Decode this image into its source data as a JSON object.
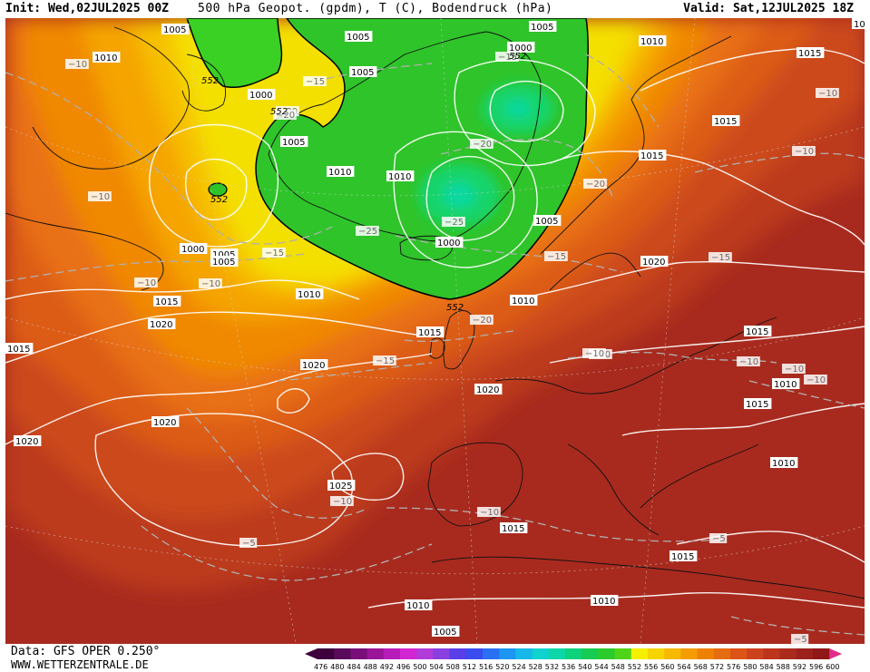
{
  "header": {
    "init": "Init: Wed,02JUL2025 00Z",
    "title": "500 hPa Geopot. (gpdm), T (C), Bodendruck (hPa)",
    "valid": "Valid: Sat,12JUL2025 18Z"
  },
  "footer": {
    "data_source": "Data: GFS OPER 0.250°",
    "website": "WWW.WETTERZENTRALE.DE"
  },
  "legend": {
    "values": [
      "476",
      "480",
      "484",
      "488",
      "492",
      "496",
      "500",
      "504",
      "508",
      "512",
      "516",
      "520",
      "524",
      "528",
      "532",
      "536",
      "540",
      "544",
      "548",
      "552",
      "556",
      "560",
      "564",
      "568",
      "572",
      "576",
      "580",
      "584",
      "588",
      "592",
      "596",
      "600"
    ],
    "colors": [
      "#3d003d",
      "#5a0a5a",
      "#7a0f7a",
      "#9a1498",
      "#b81cb8",
      "#d226d2",
      "#b13bd8",
      "#8a3fe0",
      "#5a3fe8",
      "#3a4cf0",
      "#2a70f2",
      "#1d96f2",
      "#15b8e8",
      "#10d2cf",
      "#0dd6a8",
      "#0dd27c",
      "#16cc52",
      "#2ccb2c",
      "#50d418",
      "#f4f000",
      "#f6d400",
      "#f6b800",
      "#f49c00",
      "#ee8200",
      "#e66c10",
      "#dc5418",
      "#cc421c",
      "#bc341c",
      "#aa2a1c",
      "#9c201c",
      "#901818",
      "#e32d8c"
    ]
  },
  "map": {
    "pressure_labels": [
      {
        "t": "1005"
      },
      {
        "t": "1005"
      },
      {
        "t": "1005"
      },
      {
        "t": "1000"
      },
      {
        "t": "1010"
      },
      {
        "t": "1015"
      },
      {
        "t": "1010"
      },
      {
        "t": "1005"
      },
      {
        "t": "1000"
      },
      {
        "t": "1005"
      },
      {
        "t": "1010"
      },
      {
        "t": "1010"
      },
      {
        "t": "1005"
      },
      {
        "t": "1015"
      },
      {
        "t": "1015"
      },
      {
        "t": "1005"
      },
      {
        "t": "1000"
      },
      {
        "t": "1005"
      },
      {
        "t": "1000"
      },
      {
        "t": "1010"
      },
      {
        "t": "1015"
      },
      {
        "t": "1020"
      },
      {
        "t": "1015"
      },
      {
        "t": "1020"
      },
      {
        "t": "1010"
      },
      {
        "t": "1015"
      },
      {
        "t": "1020"
      },
      {
        "t": "1015"
      },
      {
        "t": "1010"
      },
      {
        "t": "1020"
      },
      {
        "t": "1020"
      },
      {
        "t": "1020"
      },
      {
        "t": "1015"
      },
      {
        "t": "1010"
      },
      {
        "t": "1025"
      },
      {
        "t": "1015"
      },
      {
        "t": "1015"
      },
      {
        "t": "1010"
      },
      {
        "t": "1010"
      },
      {
        "t": "1005"
      },
      {
        "t": "10"
      }
    ],
    "temperature_labels": [
      {
        "t": "−10"
      },
      {
        "t": "−15"
      },
      {
        "t": "−20"
      },
      {
        "t": "−15"
      },
      {
        "t": "−10"
      },
      {
        "t": "−20"
      },
      {
        "t": "−20"
      },
      {
        "t": "−25"
      },
      {
        "t": "−25"
      },
      {
        "t": "−15"
      },
      {
        "t": "−10"
      },
      {
        "t": "−10"
      },
      {
        "t": "−10"
      },
      {
        "t": "−20"
      },
      {
        "t": "−15"
      },
      {
        "t": "−15"
      },
      {
        "t": "−20"
      },
      {
        "t": "−10"
      },
      {
        "t": "−10"
      },
      {
        "t": "−15"
      },
      {
        "t": "−10"
      },
      {
        "t": "−10"
      },
      {
        "t": "−10"
      },
      {
        "t": "−10"
      },
      {
        "t": "−5"
      },
      {
        "t": "−5"
      },
      {
        "t": "−5"
      },
      {
        "t": "−10"
      },
      {
        "t": "−10"
      }
    ],
    "geopotential_labels": [
      {
        "t": "552"
      },
      {
        "t": "552"
      },
      {
        "t": "552"
      },
      {
        "t": "552"
      },
      {
        "t": "552"
      }
    ]
  }
}
